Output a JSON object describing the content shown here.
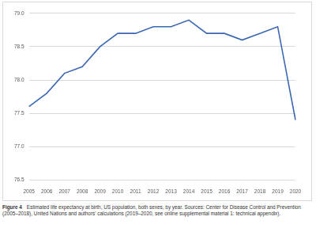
{
  "chart_data": {
    "type": "line",
    "caption_label": "Figure 4",
    "caption": "Estimated life expectancy at birth, US population, both sexes, by year. Sources: Center for Disease Control and Prevention (2005–2018), United Nations and authors' calculations (2019–2020, see online supplemental material 1: technical appendix).",
    "categories": [
      "2005",
      "2006",
      "2007",
      "2008",
      "2009",
      "2010",
      "2011",
      "2012",
      "2013",
      "2014",
      "2015",
      "2016",
      "2017",
      "2018",
      "2019",
      "2020"
    ],
    "values": [
      77.6,
      77.8,
      78.1,
      78.2,
      78.5,
      78.7,
      78.7,
      78.8,
      78.8,
      78.9,
      78.7,
      78.7,
      78.6,
      78.7,
      78.8,
      77.4
    ],
    "color": "#3b67b2",
    "ylim": [
      76.5,
      79.0
    ],
    "yticks": [
      76.5,
      {
        "value": 77,
        "label": "77.0"
      },
      77.5,
      {
        "value": 78,
        "label": "78.0"
      },
      78.5,
      {
        "value": 79,
        "label": "79.0"
      }
    ],
    "grid": true
  }
}
